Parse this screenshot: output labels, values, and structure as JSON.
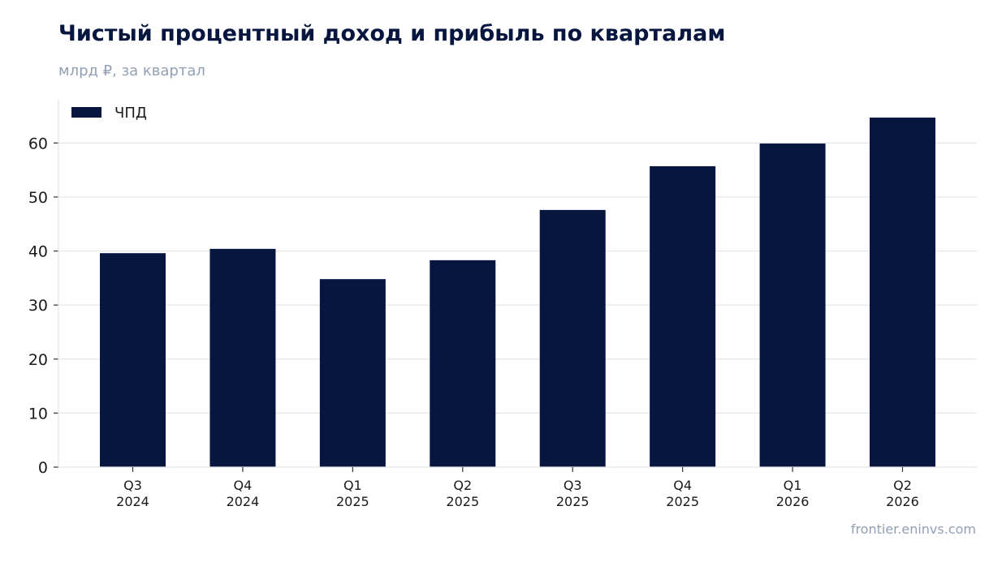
{
  "chart_data": {
    "type": "bar",
    "title": "Чистый процентный доход и прибыль по кварталам",
    "subtitle": "млрд ₽, за квартал",
    "categories": [
      [
        "Q3",
        "2024"
      ],
      [
        "Q4",
        "2024"
      ],
      [
        "Q1",
        "2025"
      ],
      [
        "Q2",
        "2025"
      ],
      [
        "Q3",
        "2025"
      ],
      [
        "Q4",
        "2025"
      ],
      [
        "Q1",
        "2026"
      ],
      [
        "Q2",
        "2026"
      ]
    ],
    "series": [
      {
        "name": "ЧПД",
        "color": "#06163f",
        "values": [
          39.6,
          40.4,
          34.8,
          38.3,
          47.6,
          55.7,
          59.9,
          64.7
        ]
      }
    ],
    "yticks": [
      0,
      10,
      20,
      30,
      40,
      50,
      60
    ],
    "ylim": [
      0,
      68
    ],
    "grid": true,
    "legend": "top-left"
  },
  "source": "frontier.eninvs.com"
}
